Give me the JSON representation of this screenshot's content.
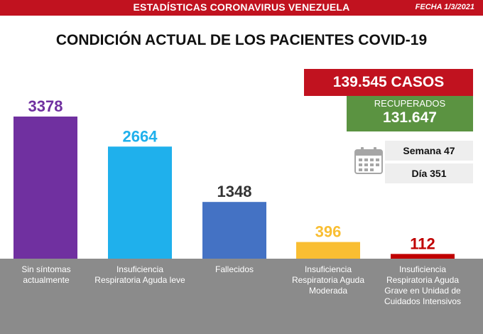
{
  "header": {
    "title": "ESTADÍSTICAS CORONAVIRUS VENEZUELA",
    "date": "FECHA 1/3/2021"
  },
  "chart_title": "CONDICIÓN ACTUAL DE LOS PACIENTES COVID-19",
  "summary": {
    "cases": "139.545 CASOS",
    "recovered_label": "RECUPERADOS",
    "recovered_value": "131.647",
    "week": "Semana 47",
    "day": "Día 351",
    "calendar_icon": "calendar-icon"
  },
  "colors": {
    "header_red": "#c1121f",
    "recovered_green": "#5b9341",
    "label_band": "#8b8b8b"
  },
  "chart_data": {
    "type": "bar",
    "title": "CONDICIÓN ACTUAL DE LOS PACIENTES COVID-19",
    "categories": [
      "Sin síntomas actualmente",
      "Insuficiencia Respiratoria Aguda leve",
      "Fallecidos",
      "Insuficiencia Respiratoria Aguda Moderada",
      "Insuficiencia Respiratoria Aguda Grave en Unidad de Cuidados Intensivos"
    ],
    "values": [
      3378,
      2664,
      1348,
      396,
      112
    ],
    "bar_colors": [
      "#7030a0",
      "#1fb0ec",
      "#4472c4",
      "#f9be32",
      "#c00000"
    ],
    "label_colors": [
      "#7030a0",
      "#1fb0ec",
      "#333333",
      "#f9be32",
      "#c00000"
    ],
    "ylim": [
      0,
      3378
    ],
    "grid": false,
    "legend": "none"
  }
}
